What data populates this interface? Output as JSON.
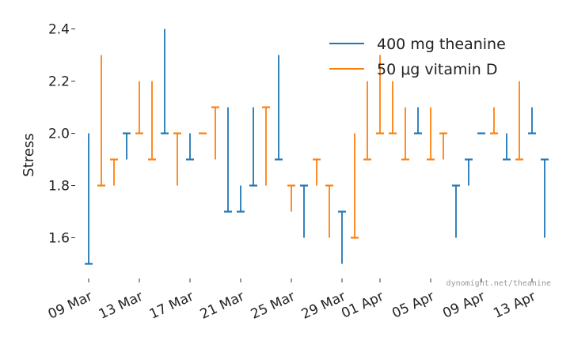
{
  "chart_data": {
    "type": "line",
    "subtype": "interval-errorbar",
    "title": "",
    "xlabel": "",
    "ylabel": "Stress",
    "ylim": [
      1.45,
      2.42
    ],
    "yticks": [
      1.6,
      1.8,
      2.0,
      2.2,
      2.4
    ],
    "ytick_labels": [
      "1.6",
      "1.8",
      "2.0",
      "2.2",
      "2.4"
    ],
    "xlim": [
      "2023-03-08",
      "2023-04-14"
    ],
    "xticks": [
      {
        "date": "2023-03-09",
        "label": "09 Mar"
      },
      {
        "date": "2023-03-13",
        "label": "13 Mar"
      },
      {
        "date": "2023-03-17",
        "label": "17 Mar"
      },
      {
        "date": "2023-03-21",
        "label": "21 Mar"
      },
      {
        "date": "2023-03-25",
        "label": "25 Mar"
      },
      {
        "date": "2023-03-29",
        "label": "29 Mar"
      },
      {
        "date": "2023-04-01",
        "label": "01 Apr"
      },
      {
        "date": "2023-04-05",
        "label": "05 Apr"
      },
      {
        "date": "2023-04-09",
        "label": "09 Apr"
      },
      {
        "date": "2023-04-13",
        "label": "13 Apr"
      }
    ],
    "legend_position": "top-right",
    "grid": false,
    "watermark": "dynomight.net/theanine",
    "series": [
      {
        "name": "400 mg theanine",
        "color": "#1f77b4",
        "points": [
          {
            "x": "2023-03-09",
            "before": 1.5,
            "after": 2.0
          },
          {
            "x": "2023-03-12",
            "before": 2.0,
            "after": 1.9
          },
          {
            "x": "2023-03-15",
            "before": 2.0,
            "after": 2.4
          },
          {
            "x": "2023-03-17",
            "before": 1.9,
            "after": 2.0
          },
          {
            "x": "2023-03-20",
            "before": 1.7,
            "after": 2.1
          },
          {
            "x": "2023-03-21",
            "before": 1.7,
            "after": 1.8
          },
          {
            "x": "2023-03-22",
            "before": 1.8,
            "after": 2.1
          },
          {
            "x": "2023-03-24",
            "before": 1.9,
            "after": 2.3
          },
          {
            "x": "2023-03-26",
            "before": 1.8,
            "after": 1.6
          },
          {
            "x": "2023-03-29",
            "before": 1.7,
            "after": 1.5
          },
          {
            "x": "2023-04-04",
            "before": 2.0,
            "after": 2.1
          },
          {
            "x": "2023-04-07",
            "before": 1.8,
            "after": 1.6
          },
          {
            "x": "2023-04-08",
            "before": 1.9,
            "after": 1.8
          },
          {
            "x": "2023-04-09",
            "before": 2.0,
            "after": 2.0
          },
          {
            "x": "2023-04-11",
            "before": 1.9,
            "after": 2.0
          },
          {
            "x": "2023-04-13",
            "before": 2.0,
            "after": 2.1
          },
          {
            "x": "2023-04-14",
            "before": 1.9,
            "after": 1.6
          }
        ]
      },
      {
        "name": "50 μg vitamin D",
        "color": "#ff7f0e",
        "points": [
          {
            "x": "2023-03-10",
            "before": 1.8,
            "after": 2.3
          },
          {
            "x": "2023-03-11",
            "before": 1.9,
            "after": 1.8
          },
          {
            "x": "2023-03-13",
            "before": 2.0,
            "after": 2.2
          },
          {
            "x": "2023-03-14",
            "before": 1.9,
            "after": 2.2
          },
          {
            "x": "2023-03-16",
            "before": 2.0,
            "after": 1.8
          },
          {
            "x": "2023-03-18",
            "before": 2.0,
            "after": 2.0
          },
          {
            "x": "2023-03-19",
            "before": 2.1,
            "after": 1.9
          },
          {
            "x": "2023-03-23",
            "before": 2.1,
            "after": 1.8
          },
          {
            "x": "2023-03-25",
            "before": 1.8,
            "after": 1.7
          },
          {
            "x": "2023-03-27",
            "before": 1.9,
            "after": 1.8
          },
          {
            "x": "2023-03-28",
            "before": 1.8,
            "after": 1.6
          },
          {
            "x": "2023-03-30",
            "before": 1.6,
            "after": 2.0
          },
          {
            "x": "2023-03-31",
            "before": 1.9,
            "after": 2.2
          },
          {
            "x": "2023-04-01",
            "before": 2.0,
            "after": 2.3
          },
          {
            "x": "2023-04-02",
            "before": 2.0,
            "after": 2.2
          },
          {
            "x": "2023-04-03",
            "before": 1.9,
            "after": 2.1
          },
          {
            "x": "2023-04-05",
            "before": 1.9,
            "after": 2.1
          },
          {
            "x": "2023-04-06",
            "before": 2.0,
            "after": 1.9
          },
          {
            "x": "2023-04-10",
            "before": 2.0,
            "after": 2.1
          },
          {
            "x": "2023-04-12",
            "before": 1.9,
            "after": 2.2
          }
        ]
      }
    ]
  }
}
